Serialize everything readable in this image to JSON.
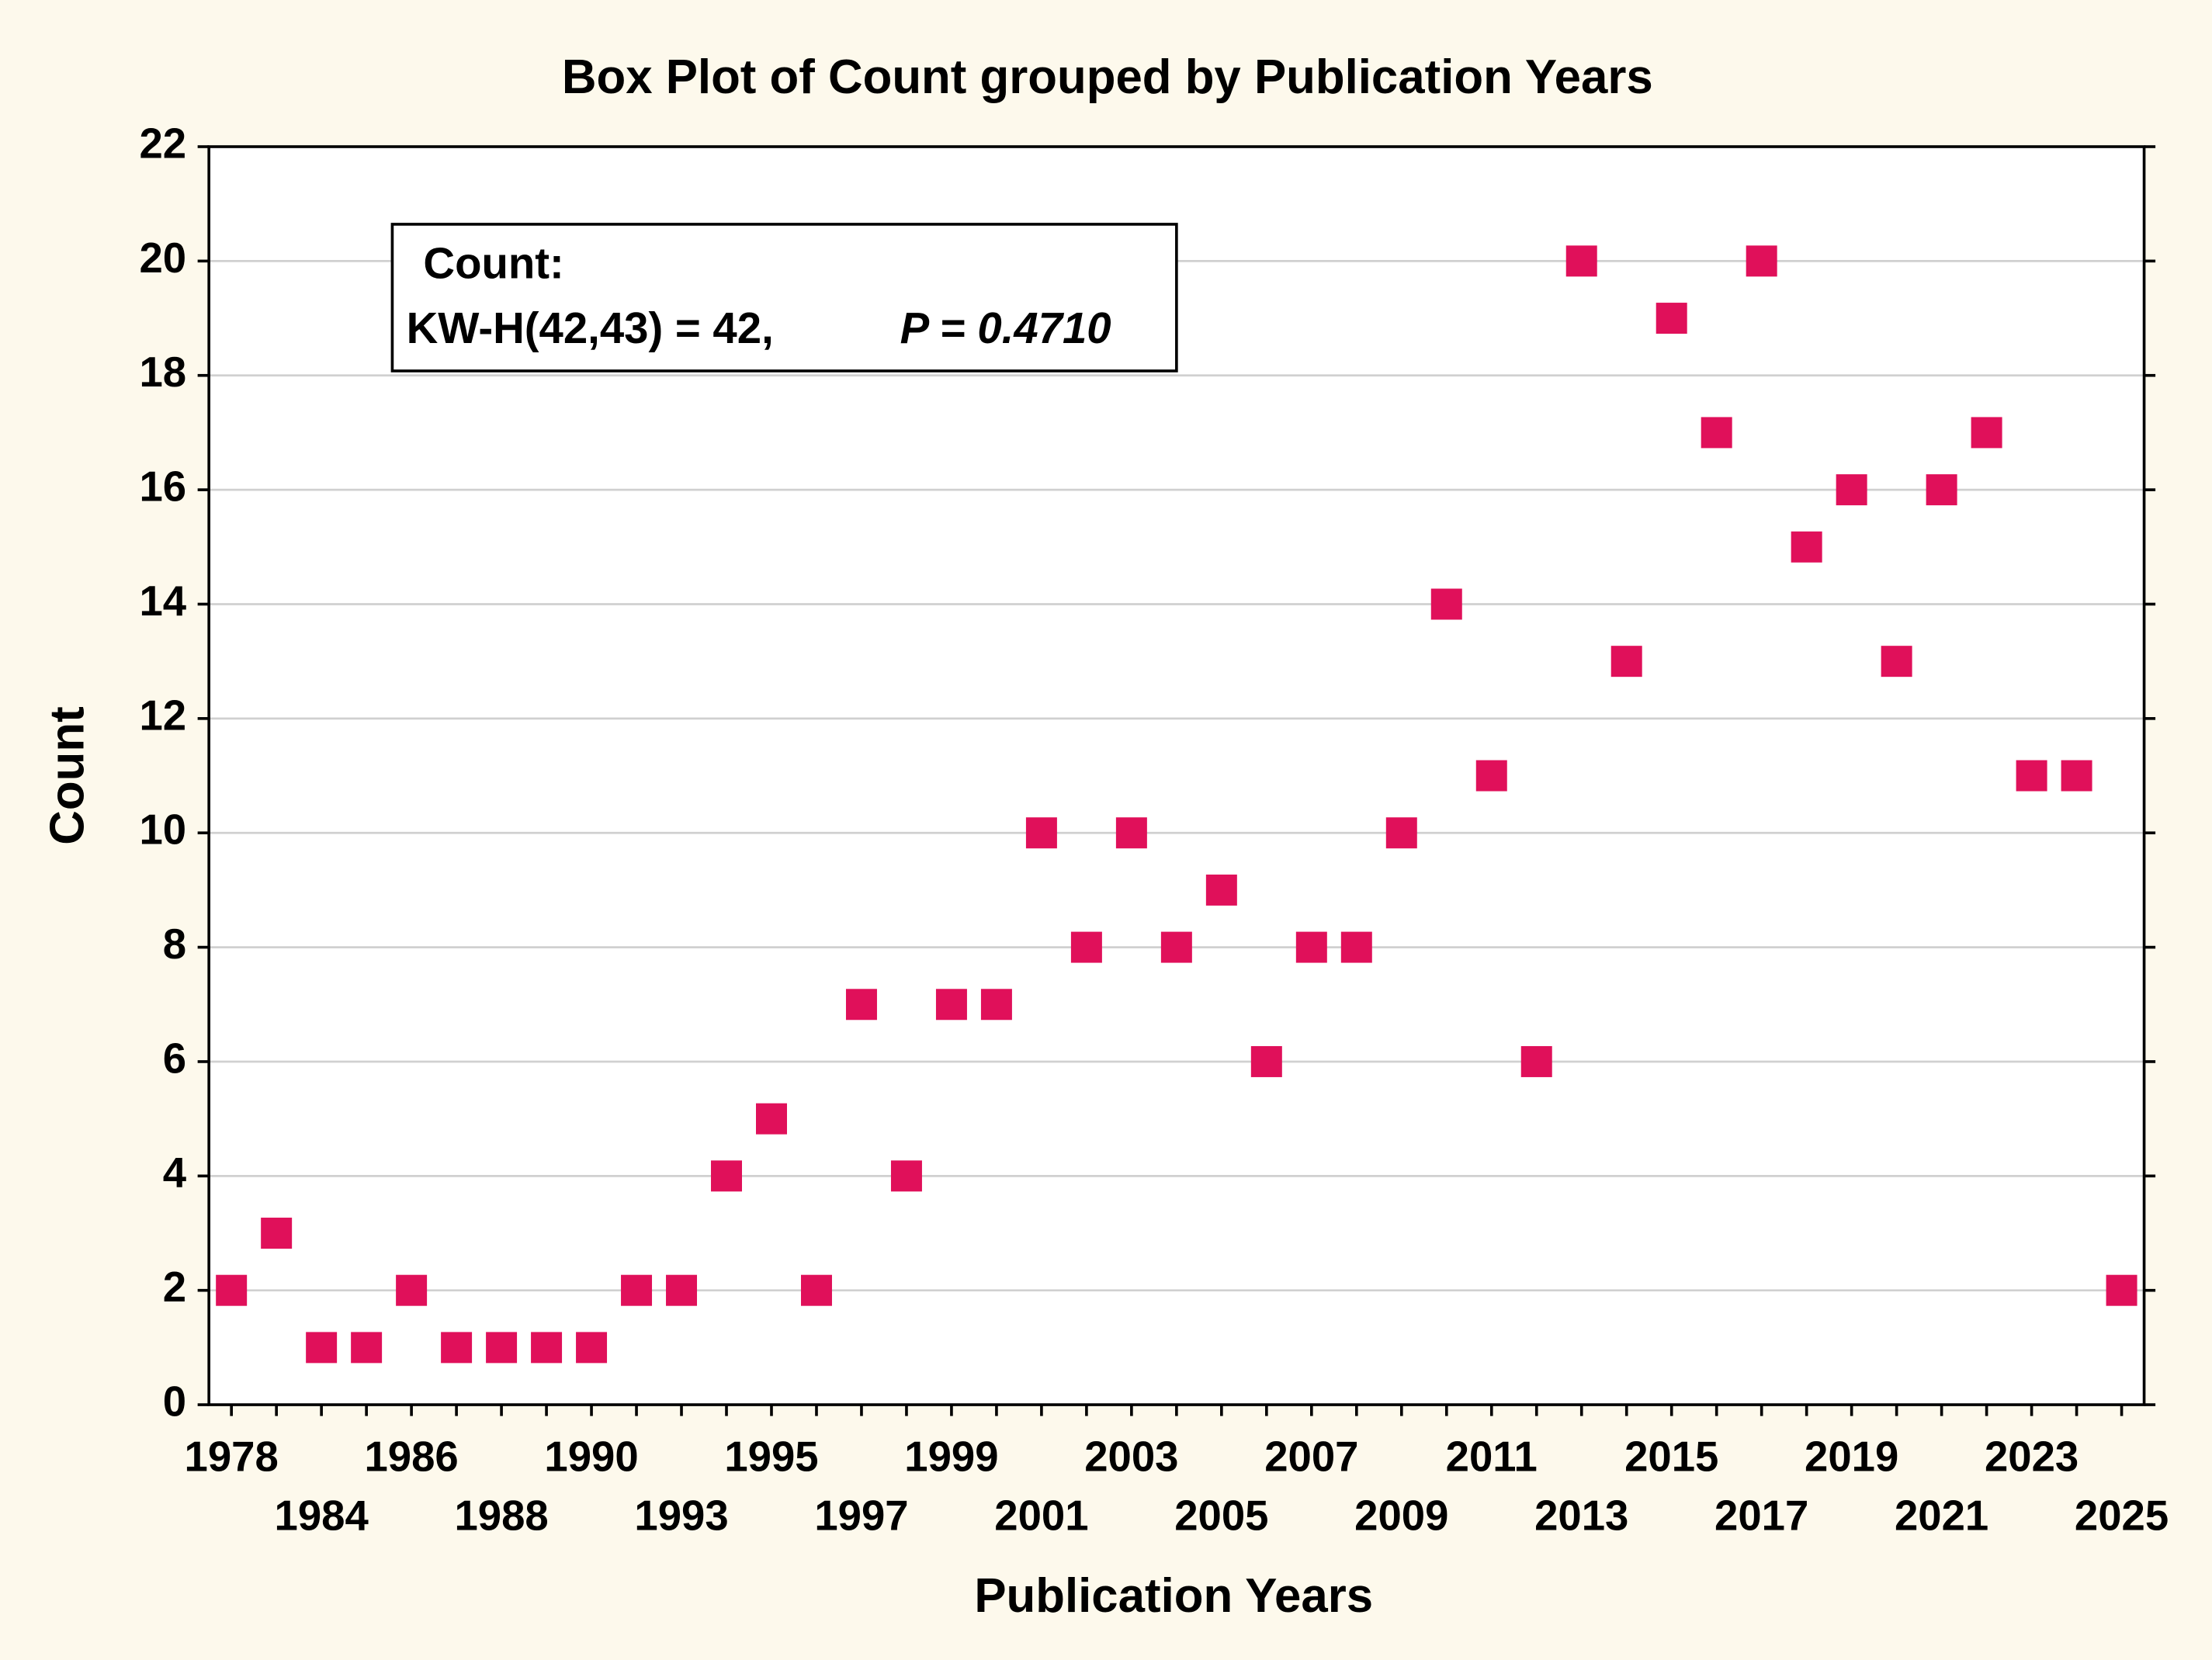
{
  "chart_data": {
    "type": "scatter",
    "title": "Box Plot of Count grouped by  Publication Years",
    "x_label": "Publication Years",
    "y_label": "Count",
    "annotation": {
      "heading": "Count:",
      "statistic": "KW-H(42,43) = 42,",
      "p_value": "P = 0.4710"
    },
    "categories": [
      "1978",
      null,
      "1984",
      null,
      "1986",
      null,
      "1988",
      null,
      "1990",
      null,
      "1993",
      null,
      "1995",
      null,
      "1997",
      null,
      "1999",
      null,
      "2001",
      null,
      "2003",
      null,
      "2005",
      null,
      "2007",
      null,
      "2009",
      null,
      "2011",
      null,
      "2013",
      null,
      "2015",
      null,
      "2017",
      null,
      "2019",
      null,
      "2021",
      null,
      "2023",
      null,
      "2025"
    ],
    "values": [
      2,
      3,
      1,
      1,
      2,
      1,
      1,
      1,
      1,
      2,
      2,
      4,
      5,
      2,
      7,
      4,
      7,
      7,
      10,
      8,
      10,
      8,
      9,
      6,
      8,
      8,
      10,
      14,
      11,
      6,
      20,
      13,
      19,
      17,
      20,
      15,
      16,
      13,
      16,
      17,
      11,
      11,
      2
    ],
    "color": "#e0105a",
    "ylim": [
      0,
      22
    ],
    "yticks": [
      0,
      2,
      4,
      6,
      8,
      10,
      12,
      14,
      16,
      18,
      20,
      22
    ],
    "grid": true
  }
}
